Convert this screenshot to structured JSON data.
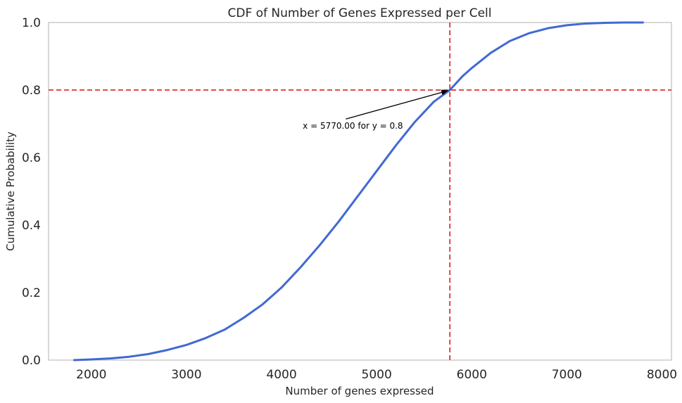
{
  "chart_data": {
    "type": "line",
    "title": "CDF of Number of Genes Expressed per Cell",
    "xlabel": "Number of genes expressed",
    "ylabel": "Cumulative Probability",
    "xlim": [
      1550,
      8100
    ],
    "ylim": [
      0.0,
      1.0
    ],
    "xticks": [
      2000,
      3000,
      4000,
      5000,
      6000,
      7000,
      8000
    ],
    "xtick_labels": [
      "2000",
      "3000",
      "4000",
      "5000",
      "6000",
      "7000",
      "8000"
    ],
    "yticks": [
      0.0,
      0.2,
      0.4,
      0.6,
      0.8,
      1.0
    ],
    "ytick_labels": [
      "0.0",
      "0.2",
      "0.4",
      "0.6",
      "0.8",
      "1.0"
    ],
    "grid": false,
    "series": [
      {
        "color": "#4169d2",
        "x": [
          1820,
          2000,
          2200,
          2400,
          2600,
          2800,
          3000,
          3200,
          3400,
          3600,
          3800,
          4000,
          4200,
          4400,
          4600,
          4800,
          5000,
          5200,
          5400,
          5600,
          5770,
          5900,
          6000,
          6200,
          6400,
          6600,
          6800,
          7000,
          7200,
          7400,
          7600,
          7800
        ],
        "y": [
          0.0,
          0.002,
          0.005,
          0.01,
          0.018,
          0.03,
          0.045,
          0.065,
          0.09,
          0.125,
          0.165,
          0.215,
          0.275,
          0.34,
          0.41,
          0.485,
          0.56,
          0.635,
          0.705,
          0.765,
          0.8,
          0.84,
          0.865,
          0.91,
          0.945,
          0.968,
          0.983,
          0.992,
          0.997,
          0.999,
          1.0,
          1.0
        ]
      }
    ],
    "reference_lines": [
      {
        "orientation": "vertical",
        "value": 5770,
        "color": "#e03030",
        "style": "dashed"
      },
      {
        "orientation": "horizontal",
        "value": 0.8,
        "color": "#e03030",
        "style": "dashed"
      }
    ],
    "annotation": {
      "text": "x = 5770.00 for y = 0.8",
      "point": [
        5770,
        0.8
      ],
      "text_position": [
        4750,
        0.685
      ],
      "arrow_color": "#000000"
    }
  }
}
